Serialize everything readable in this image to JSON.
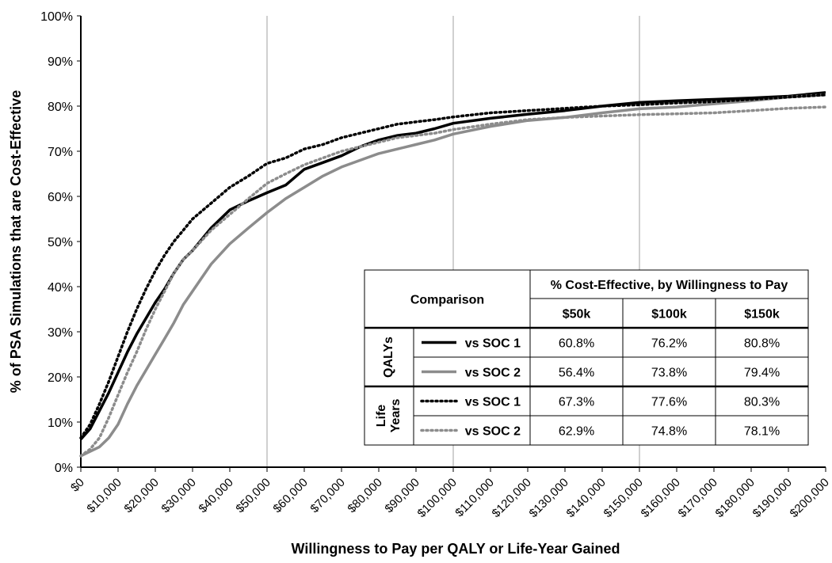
{
  "chart_data": {
    "type": "line",
    "xlabel": "Willingness to Pay per QALY or Life-Year Gained",
    "ylabel": "% of PSA Simulations that are Cost-Effective",
    "xlim": [
      0,
      200000
    ],
    "ylim": [
      0,
      100
    ],
    "x_ticks": [
      0,
      10000,
      20000,
      30000,
      40000,
      50000,
      60000,
      70000,
      80000,
      90000,
      100000,
      110000,
      120000,
      130000,
      140000,
      150000,
      160000,
      170000,
      180000,
      190000,
      200000
    ],
    "x_tick_labels": [
      "$0",
      "$10,000",
      "$20,000",
      "$30,000",
      "$40,000",
      "$50,000",
      "$60,000",
      "$70,000",
      "$80,000",
      "$90,000",
      "$100,000",
      "$110,000",
      "$120,000",
      "$130,000",
      "$140,000",
      "$150,000",
      "$160,000",
      "$170,000",
      "$180,000",
      "$190,000",
      "$200,000"
    ],
    "y_ticks": [
      0,
      10,
      20,
      30,
      40,
      50,
      60,
      70,
      80,
      90,
      100
    ],
    "y_tick_labels": [
      "0%",
      "10%",
      "20%",
      "30%",
      "40%",
      "50%",
      "60%",
      "70%",
      "80%",
      "90%",
      "100%"
    ],
    "vertical_gridlines_at": [
      50000,
      100000,
      150000
    ],
    "series": [
      {
        "id": "qaly_soc1",
        "color": "#000000",
        "style": "solid",
        "x": [
          0,
          2500,
          5000,
          7500,
          10000,
          12500,
          15000,
          17500,
          20000,
          22500,
          25000,
          27500,
          30000,
          35000,
          40000,
          45000,
          50000,
          55000,
          60000,
          65000,
          70000,
          75000,
          80000,
          85000,
          90000,
          95000,
          100000,
          110000,
          120000,
          130000,
          140000,
          150000,
          160000,
          170000,
          180000,
          190000,
          200000
        ],
        "y": [
          6.2,
          8.5,
          12.5,
          16.5,
          21,
          25.5,
          29.5,
          33,
          36.5,
          39.5,
          43,
          46,
          48,
          53,
          57,
          59,
          60.8,
          62.5,
          66,
          67.5,
          69,
          71,
          72.5,
          73.5,
          74,
          75,
          76.2,
          77.3,
          78.2,
          79,
          80,
          80.8,
          81.2,
          81.5,
          81.8,
          82.2,
          83
        ]
      },
      {
        "id": "qaly_soc2",
        "color": "#8c8c8c",
        "style": "solid",
        "x": [
          0,
          2500,
          5000,
          7500,
          10000,
          12500,
          15000,
          17500,
          20000,
          22500,
          25000,
          27500,
          30000,
          35000,
          40000,
          45000,
          50000,
          55000,
          60000,
          65000,
          70000,
          75000,
          80000,
          85000,
          90000,
          95000,
          100000,
          110000,
          120000,
          130000,
          140000,
          150000,
          160000,
          170000,
          180000,
          190000,
          200000
        ],
        "y": [
          2.5,
          3.5,
          4.5,
          6.5,
          9.5,
          14,
          18,
          21.5,
          25,
          28.5,
          32,
          36,
          39,
          45,
          49.5,
          53,
          56.4,
          59.5,
          62,
          64.5,
          66.5,
          68,
          69.5,
          70.5,
          71.5,
          72.5,
          73.8,
          75.5,
          76.8,
          77.5,
          78.5,
          79.4,
          79.8,
          80.5,
          81.2,
          82,
          82.5
        ]
      },
      {
        "id": "ly_soc1",
        "color": "#000000",
        "style": "dotted",
        "x": [
          0,
          2500,
          5000,
          7500,
          10000,
          12500,
          15000,
          17500,
          20000,
          22500,
          25000,
          27500,
          30000,
          35000,
          40000,
          45000,
          50000,
          55000,
          60000,
          65000,
          70000,
          75000,
          80000,
          85000,
          90000,
          95000,
          100000,
          110000,
          120000,
          130000,
          140000,
          150000,
          160000,
          170000,
          180000,
          190000,
          200000
        ],
        "y": [
          6.5,
          9.5,
          14,
          19,
          24.5,
          30,
          35,
          39.5,
          43.5,
          47,
          50,
          52.5,
          55,
          58.5,
          62,
          64.5,
          67.3,
          68.5,
          70.5,
          71.5,
          73,
          74,
          75,
          76,
          76.5,
          77,
          77.6,
          78.5,
          79,
          79.5,
          80,
          80.3,
          80.7,
          81,
          81.5,
          82,
          82.5
        ]
      },
      {
        "id": "ly_soc2",
        "color": "#8c8c8c",
        "style": "dotted",
        "x": [
          0,
          2500,
          5000,
          7500,
          10000,
          12500,
          15000,
          17500,
          20000,
          22500,
          25000,
          27500,
          30000,
          35000,
          40000,
          45000,
          50000,
          55000,
          60000,
          65000,
          70000,
          75000,
          80000,
          85000,
          90000,
          95000,
          100000,
          110000,
          120000,
          130000,
          140000,
          150000,
          160000,
          170000,
          180000,
          190000,
          200000
        ],
        "y": [
          2.5,
          4,
          6.5,
          11,
          16,
          21,
          25.5,
          30.5,
          35,
          39,
          43,
          46,
          48,
          52.5,
          56,
          59.5,
          62.9,
          65,
          67,
          68.5,
          70,
          71,
          72,
          73,
          73.5,
          74,
          74.8,
          76,
          77,
          77.5,
          77.8,
          78.1,
          78.3,
          78.5,
          79,
          79.5,
          79.8
        ]
      }
    ],
    "table": {
      "comparison_header": "Comparison",
      "group_header": "% Cost-Effective, by Willingness to Pay",
      "col_headers": [
        "$50k",
        "$100k",
        "$150k"
      ],
      "groups": [
        {
          "label": "QALYs",
          "rows": [
            {
              "series": "qaly_soc1",
              "label": "vs SOC 1",
              "values": [
                "60.8%",
                "76.2%",
                "80.8%"
              ]
            },
            {
              "series": "qaly_soc2",
              "label": "vs SOC 2",
              "values": [
                "56.4%",
                "73.8%",
                "79.4%"
              ]
            }
          ]
        },
        {
          "label_lines": [
            "Life",
            "Years"
          ],
          "rows": [
            {
              "series": "ly_soc1",
              "label": "vs SOC 1",
              "values": [
                "67.3%",
                "77.6%",
                "80.3%"
              ]
            },
            {
              "series": "ly_soc2",
              "label": "vs SOC 2",
              "values": [
                "62.9%",
                "74.8%",
                "78.1%"
              ]
            }
          ]
        }
      ]
    }
  }
}
